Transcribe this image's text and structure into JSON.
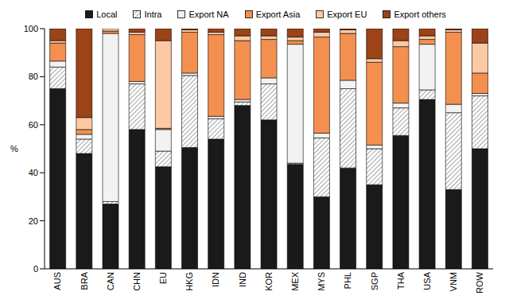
{
  "chart_data": {
    "type": "bar",
    "stacked": true,
    "legend": "top",
    "y_label": "%",
    "ylim": [
      0,
      100
    ],
    "yticks": [
      0,
      20,
      40,
      60,
      80,
      100
    ],
    "grid": false,
    "categories": [
      "AUS",
      "BRA",
      "CAN",
      "CHN",
      "EU",
      "HKG",
      "IDN",
      "IND",
      "KOR",
      "MEX",
      "MYS",
      "PHL",
      "SGP",
      "THA",
      "USA",
      "VNM",
      "ROW"
    ],
    "series": [
      {
        "name": "Local",
        "color": "#1a1a1a",
        "values": [
          75,
          48,
          27,
          58,
          42.5,
          50.5,
          54,
          68,
          62,
          43.5,
          30,
          42,
          35,
          55.5,
          70.5,
          33,
          50
        ]
      },
      {
        "name": "Intra",
        "color": "#666666",
        "marker": "hatch",
        "values": [
          9,
          6,
          1,
          19,
          6.5,
          30,
          8.5,
          1.5,
          15,
          0.5,
          24.5,
          33,
          15,
          11.5,
          4,
          32,
          22
        ]
      },
      {
        "name": "Export NA",
        "color": "#f2f2f2",
        "values": [
          2.5,
          2,
          70,
          1,
          9,
          1,
          1,
          1,
          2.5,
          49.5,
          2,
          3.5,
          1.5,
          2,
          19,
          3.5,
          1
        ]
      },
      {
        "name": "Export Asia",
        "color": "#f4904f",
        "values": [
          7.5,
          2,
          1,
          19.5,
          0.5,
          17,
          34,
          24.5,
          16,
          1.5,
          40,
          19.5,
          34.5,
          23.5,
          2,
          30,
          8.5
        ]
      },
      {
        "name": "Export EU",
        "color": "#fcc9a4",
        "values": [
          1,
          5,
          1,
          1,
          36.5,
          1,
          1,
          2,
          1.5,
          1.5,
          2,
          1.5,
          1.5,
          2.5,
          1.5,
          1,
          12.5
        ]
      },
      {
        "name": "Export others",
        "color": "#9c4318",
        "values": [
          5,
          37,
          0,
          1.5,
          5,
          0.5,
          1.5,
          3,
          3,
          3.5,
          1.5,
          0.5,
          12.5,
          5,
          3,
          0.5,
          6
        ]
      }
    ]
  }
}
